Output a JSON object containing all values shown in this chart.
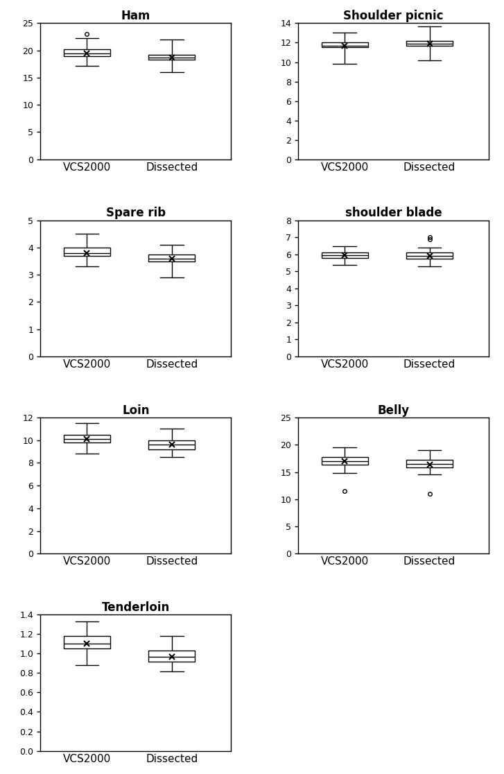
{
  "plots": [
    {
      "title": "Ham",
      "ylim": [
        0,
        25
      ],
      "yticks": [
        0,
        5,
        10,
        15,
        20,
        25
      ],
      "row": 0,
      "col": 0,
      "boxes": [
        {
          "label": "VCS2000",
          "q1": 19.0,
          "median": 19.5,
          "q3": 20.2,
          "mean": 19.5,
          "whislo": 17.2,
          "whishi": 22.2,
          "fliers": [
            23.0
          ]
        },
        {
          "label": "Dissected",
          "q1": 18.3,
          "median": 18.7,
          "q3": 19.2,
          "mean": 18.7,
          "whislo": 16.0,
          "whishi": 22.0,
          "fliers": []
        }
      ]
    },
    {
      "title": "Shoulder picnic",
      "ylim": [
        0,
        14
      ],
      "yticks": [
        0,
        2,
        4,
        6,
        8,
        10,
        12,
        14
      ],
      "row": 0,
      "col": 1,
      "boxes": [
        {
          "label": "VCS2000",
          "q1": 11.5,
          "median": 11.7,
          "q3": 12.0,
          "mean": 11.7,
          "whislo": 9.8,
          "whishi": 13.0,
          "fliers": []
        },
        {
          "label": "Dissected",
          "q1": 11.7,
          "median": 11.9,
          "q3": 12.2,
          "mean": 11.9,
          "whislo": 10.2,
          "whishi": 13.7,
          "fliers": []
        }
      ]
    },
    {
      "title": "Spare rib",
      "ylim": [
        0,
        5
      ],
      "yticks": [
        0,
        1,
        2,
        3,
        4,
        5
      ],
      "row": 1,
      "col": 0,
      "boxes": [
        {
          "label": "VCS2000",
          "q1": 3.7,
          "median": 3.8,
          "q3": 4.0,
          "mean": 3.8,
          "whislo": 3.3,
          "whishi": 4.5,
          "fliers": []
        },
        {
          "label": "Dissected",
          "q1": 3.5,
          "median": 3.6,
          "q3": 3.75,
          "mean": 3.6,
          "whislo": 2.9,
          "whishi": 4.1,
          "fliers": []
        }
      ]
    },
    {
      "title": "shoulder blade",
      "ylim": [
        0,
        8
      ],
      "yticks": [
        0,
        1,
        2,
        3,
        4,
        5,
        6,
        7,
        8
      ],
      "row": 1,
      "col": 1,
      "boxes": [
        {
          "label": "VCS2000",
          "q1": 5.8,
          "median": 5.95,
          "q3": 6.1,
          "mean": 5.95,
          "whislo": 5.4,
          "whishi": 6.5,
          "fliers": []
        },
        {
          "label": "Dissected",
          "q1": 5.75,
          "median": 5.9,
          "q3": 6.1,
          "mean": 5.9,
          "whislo": 5.3,
          "whishi": 6.4,
          "fliers": [
            6.9,
            7.0
          ]
        }
      ]
    },
    {
      "title": "Loin",
      "ylim": [
        0,
        12
      ],
      "yticks": [
        0,
        2,
        4,
        6,
        8,
        10,
        12
      ],
      "row": 2,
      "col": 0,
      "boxes": [
        {
          "label": "VCS2000",
          "q1": 9.8,
          "median": 10.1,
          "q3": 10.5,
          "mean": 10.1,
          "whislo": 8.8,
          "whishi": 11.5,
          "fliers": []
        },
        {
          "label": "Dissected",
          "q1": 9.2,
          "median": 9.6,
          "q3": 10.0,
          "mean": 9.6,
          "whislo": 8.5,
          "whishi": 11.0,
          "fliers": []
        }
      ]
    },
    {
      "title": "Belly",
      "ylim": [
        0,
        25
      ],
      "yticks": [
        0,
        5,
        10,
        15,
        20,
        25
      ],
      "row": 2,
      "col": 1,
      "boxes": [
        {
          "label": "VCS2000",
          "q1": 16.3,
          "median": 17.0,
          "q3": 17.8,
          "mean": 17.0,
          "whislo": 14.8,
          "whishi": 19.5,
          "fliers": [
            11.5
          ]
        },
        {
          "label": "Dissected",
          "q1": 15.8,
          "median": 16.5,
          "q3": 17.2,
          "mean": 16.4,
          "whislo": 14.5,
          "whishi": 19.0,
          "fliers": [
            11.0
          ]
        }
      ]
    },
    {
      "title": "Tenderloin",
      "ylim": [
        0,
        1.4
      ],
      "yticks": [
        0,
        0.2,
        0.4,
        0.6,
        0.8,
        1.0,
        1.2,
        1.4
      ],
      "row": 3,
      "col": 0,
      "boxes": [
        {
          "label": "VCS2000",
          "q1": 1.05,
          "median": 1.1,
          "q3": 1.18,
          "mean": 1.1,
          "whislo": 0.88,
          "whishi": 1.33,
          "fliers": []
        },
        {
          "label": "Dissected",
          "q1": 0.92,
          "median": 0.97,
          "q3": 1.03,
          "mean": 0.97,
          "whislo": 0.82,
          "whishi": 1.18,
          "fliers": []
        }
      ]
    }
  ],
  "xlabel_labels": [
    "VCS2000",
    "Dissected"
  ],
  "box_width": 0.55,
  "title_fontsize": 12,
  "tick_fontsize": 9,
  "xlabel_fontsize": 11
}
